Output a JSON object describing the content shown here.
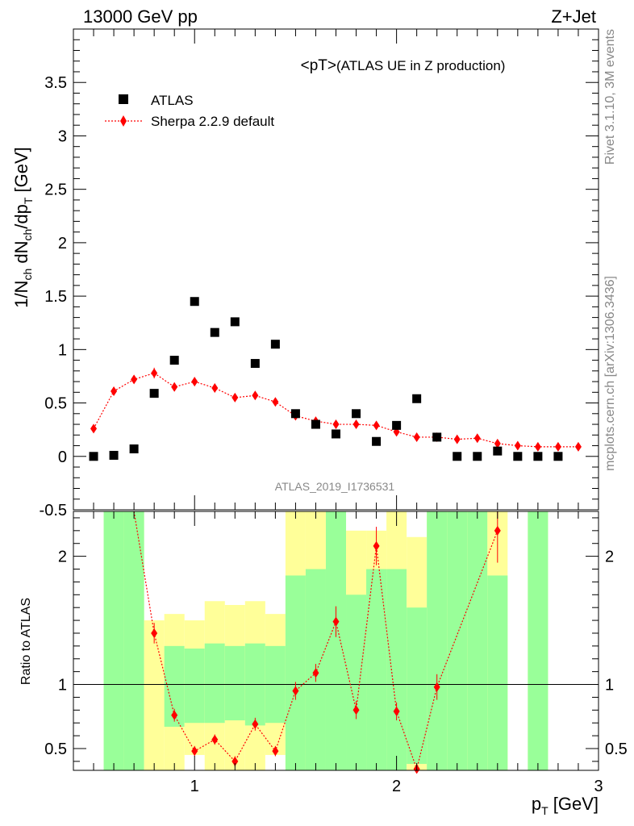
{
  "header": {
    "left": "13000 GeV pp",
    "right": "Z+Jet"
  },
  "side_labels": {
    "rivet": "Rivet 3.1.10,  3M events",
    "mcplots": "mcplots.cern.ch [arXiv:1306.3436]"
  },
  "chart_data": [
    {
      "type": "scatter",
      "panel": "main",
      "title_main": "<pT>",
      "title_sub": " (ATLAS UE in Z production)",
      "watermark": "ATLAS_2019_I1736531",
      "xlabel": "p_T [GeV]",
      "ylabel": "1/N_ch dN_ch/dp_T [GeV]",
      "xlim": [
        0.4,
        3.0
      ],
      "ylim": [
        -0.5,
        4.0
      ],
      "y_ticks": [
        "-0.5",
        "0",
        "0.5",
        "1",
        "1.5",
        "2",
        "2.5",
        "3",
        "3.5"
      ],
      "x_ticks": [
        "1",
        "2",
        "3"
      ],
      "legend_position": "top-left",
      "series": [
        {
          "name": "ATLAS",
          "style": "black-square-markers",
          "color": "#000000",
          "x": [
            0.5,
            0.6,
            0.7,
            0.8,
            0.9,
            1.0,
            1.1,
            1.2,
            1.3,
            1.4,
            1.5,
            1.6,
            1.7,
            1.8,
            1.9,
            2.0,
            2.1,
            2.2,
            2.3,
            2.4,
            2.5,
            2.6,
            2.7,
            2.8
          ],
          "y": [
            0.0,
            0.01,
            0.07,
            0.59,
            0.9,
            1.45,
            1.16,
            1.26,
            0.87,
            1.05,
            0.4,
            0.3,
            0.21,
            0.4,
            0.14,
            0.29,
            0.54,
            0.18,
            0.0,
            0.0,
            0.05,
            0.0,
            0.0,
            0.0
          ]
        },
        {
          "name": "Sherpa 2.2.9 default",
          "style": "red-diamond-dotted-line",
          "color": "#ff0000",
          "x": [
            0.5,
            0.6,
            0.7,
            0.8,
            0.9,
            1.0,
            1.1,
            1.2,
            1.3,
            1.4,
            1.5,
            1.6,
            1.7,
            1.8,
            1.9,
            2.0,
            2.1,
            2.2,
            2.3,
            2.4,
            2.5,
            2.6,
            2.7,
            2.8,
            2.9
          ],
          "y": [
            0.26,
            0.61,
            0.72,
            0.78,
            0.65,
            0.7,
            0.64,
            0.55,
            0.57,
            0.51,
            0.38,
            0.33,
            0.3,
            0.3,
            0.29,
            0.23,
            0.18,
            0.18,
            0.16,
            0.17,
            0.12,
            0.1,
            0.09,
            0.09,
            0.09
          ],
          "yerr": [
            0.03,
            0.04,
            0.04,
            0.05,
            0.04,
            0.04,
            0.04,
            0.03,
            0.03,
            0.03,
            0.03,
            0.03,
            0.02,
            0.02,
            0.02,
            0.02,
            0.02,
            0.02,
            0.02,
            0.02,
            0.02,
            0.01,
            0.01,
            0.01,
            0.01
          ]
        }
      ]
    },
    {
      "type": "scatter",
      "panel": "ratio",
      "ylabel": "Ratio to ATLAS",
      "xlabel": "p_T [GeV]",
      "xlim": [
        0.4,
        3.0
      ],
      "ylim": [
        0.33,
        2.35
      ],
      "y_ticks": [
        "0.5",
        "1",
        "2"
      ],
      "x_ticks": [
        "1",
        "2",
        "3"
      ],
      "reference_line": 1,
      "bands": [
        {
          "x0": 0.55,
          "x1": 0.65,
          "g_lo": 0.0,
          "g_hi": 2.4,
          "y_lo": 0.0,
          "y_hi": 2.4
        },
        {
          "x0": 0.65,
          "x1": 0.75,
          "g_lo": 0.0,
          "g_hi": 2.4,
          "y_lo": 0.0,
          "y_hi": 2.4
        },
        {
          "x0": 0.75,
          "x1": 0.85,
          "g_lo": 0.0,
          "g_hi": 0.0,
          "y_lo": 0.33,
          "y_hi": 1.5
        },
        {
          "x0": 0.85,
          "x1": 0.95,
          "g_lo": 0.67,
          "g_hi": 1.3,
          "y_lo": 0.33,
          "y_hi": 1.55
        },
        {
          "x0": 0.95,
          "x1": 1.05,
          "g_lo": 0.7,
          "g_hi": 1.28,
          "y_lo": 0.45,
          "y_hi": 1.5
        },
        {
          "x0": 1.05,
          "x1": 1.15,
          "g_lo": 0.7,
          "g_hi": 1.32,
          "y_lo": 0.33,
          "y_hi": 1.65
        },
        {
          "x0": 1.15,
          "x1": 1.25,
          "g_lo": 0.72,
          "g_hi": 1.3,
          "y_lo": 0.33,
          "y_hi": 1.62
        },
        {
          "x0": 1.25,
          "x1": 1.35,
          "g_lo": 0.68,
          "g_hi": 1.32,
          "y_lo": 0.33,
          "y_hi": 1.65
        },
        {
          "x0": 1.35,
          "x1": 1.45,
          "g_lo": 0.7,
          "g_hi": 1.3,
          "y_lo": 0.45,
          "y_hi": 1.55
        },
        {
          "x0": 1.45,
          "x1": 1.55,
          "g_lo": 0.0,
          "g_hi": 1.85,
          "y_lo": 0.0,
          "y_hi": 2.4
        },
        {
          "x0": 1.55,
          "x1": 1.65,
          "g_lo": 0.0,
          "g_hi": 1.9,
          "y_lo": 0.0,
          "y_hi": 2.4
        },
        {
          "x0": 1.65,
          "x1": 1.75,
          "g_lo": 0.0,
          "g_hi": 2.4,
          "y_lo": 0.0,
          "y_hi": 2.4
        },
        {
          "x0": 1.75,
          "x1": 1.85,
          "g_lo": 0.0,
          "g_hi": 1.7,
          "y_lo": 0.0,
          "y_hi": 2.2
        },
        {
          "x0": 1.85,
          "x1": 1.95,
          "g_lo": 0.0,
          "g_hi": 1.9,
          "y_lo": 0.0,
          "y_hi": 2.2
        },
        {
          "x0": 1.95,
          "x1": 2.05,
          "g_lo": 0.0,
          "g_hi": 1.9,
          "y_lo": 0.0,
          "y_hi": 2.4
        },
        {
          "x0": 2.05,
          "x1": 2.15,
          "g_lo": 0.38,
          "g_hi": 1.6,
          "y_lo": 0.33,
          "y_hi": 2.15
        },
        {
          "x0": 2.15,
          "x1": 2.25,
          "g_lo": 0.0,
          "g_hi": 2.4,
          "y_lo": 0.0,
          "y_hi": 2.4
        },
        {
          "x0": 2.25,
          "x1": 2.35,
          "g_lo": 0.0,
          "g_hi": 2.4,
          "y_lo": 0.0,
          "y_hi": 2.4
        },
        {
          "x0": 2.35,
          "x1": 2.45,
          "g_lo": 0.0,
          "g_hi": 2.4,
          "y_lo": 0.0,
          "y_hi": 2.4
        },
        {
          "x0": 2.45,
          "x1": 2.55,
          "g_lo": 0.0,
          "g_hi": 1.85,
          "y_lo": 0.0,
          "y_hi": 2.4
        },
        {
          "x0": 2.65,
          "x1": 2.75,
          "g_lo": 0.0,
          "g_hi": 2.4,
          "y_lo": 0.0,
          "y_hi": 2.4
        }
      ],
      "series": [
        {
          "name": "Sherpa 2.2.9 default",
          "color": "#ff0000",
          "x": [
            0.8,
            0.9,
            1.0,
            1.1,
            1.2,
            1.3,
            1.4,
            1.5,
            1.6,
            1.7,
            1.8,
            1.9,
            2.0,
            2.1,
            2.2,
            2.5
          ],
          "y": [
            1.4,
            0.76,
            0.48,
            0.57,
            0.4,
            0.69,
            0.48,
            0.95,
            1.09,
            1.49,
            0.8,
            2.08,
            0.79,
            0.34,
            0.98,
            2.2
          ],
          "yerr": [
            0.08,
            0.05,
            0.04,
            0.04,
            0.04,
            0.05,
            0.04,
            0.07,
            0.07,
            0.12,
            0.07,
            0.15,
            0.07,
            0.04,
            0.1,
            0.25
          ]
        }
      ]
    }
  ]
}
